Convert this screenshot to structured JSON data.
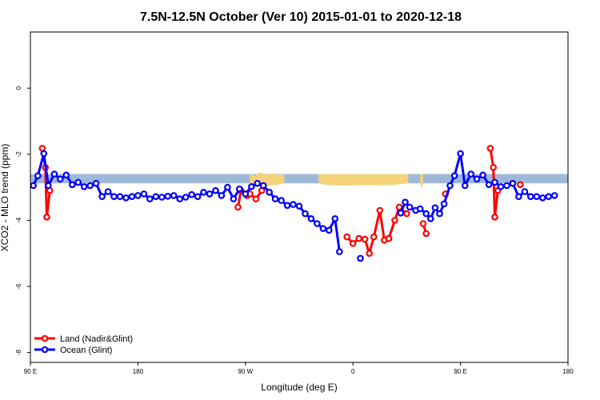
{
  "chart_data": {
    "type": "line",
    "title": "7.5N-12.5N October (Ver 10)   2015-01-01 to 2020-12-18",
    "xlabel": "Longitude (deg E)",
    "ylabel": "XCO2 - MLO trend (ppm)",
    "xlim": [
      90,
      450
    ],
    "ylim": [
      -8.3,
      1.7
    ],
    "x_ticks": [
      {
        "value": 90,
        "label": "90 E"
      },
      {
        "value": 162,
        "label": "180"
      },
      {
        "value": 234,
        "label": "90 W"
      },
      {
        "value": 306,
        "label": "0"
      },
      {
        "value": 378,
        "label": "90 E"
      },
      {
        "value": 450,
        "label": "180"
      }
    ],
    "y_ticks": [
      {
        "value": 0,
        "label": "0"
      },
      {
        "value": -2,
        "label": "-2"
      },
      {
        "value": -4,
        "label": "-4"
      },
      {
        "value": -6,
        "label": "-6"
      },
      {
        "value": -8,
        "label": "-8"
      }
    ],
    "band": {
      "y_low": -2.88,
      "y_high": -2.6,
      "color": "#a0b8d8",
      "land_color": "#f5d37a",
      "land_segments": [
        {
          "x": [
            237,
            240,
            244,
            248,
            252,
            256,
            260
          ],
          "top": [
            -2.6,
            -2.65,
            -2.55,
            -2.62,
            -2.57,
            -2.63,
            -2.6
          ],
          "bottom": [
            -2.88,
            -2.95,
            -3.0,
            -2.97,
            -2.94,
            -2.92,
            -2.88
          ]
        },
        {
          "x": [
            283,
            288,
            300,
            315,
            330,
            343
          ],
          "top": [
            -2.6,
            -2.6,
            -2.6,
            -2.6,
            -2.6,
            -2.6
          ],
          "bottom": [
            -2.88,
            -2.93,
            -2.95,
            -2.93,
            -2.94,
            -2.88
          ]
        },
        {
          "x": [
            351,
            352,
            353
          ],
          "top": [
            -2.6,
            -2.6,
            -2.6
          ],
          "bottom": [
            -2.88,
            -3.05,
            -2.88
          ]
        }
      ]
    },
    "series": [
      {
        "name": "Land (Nadir&Glint)",
        "color": "#ff0000",
        "segments": [
          [
            [
              98,
              -1.82
            ],
            [
              100,
              -2.4
            ],
            [
              101,
              -3.9
            ],
            [
              103,
              -3.1
            ]
          ],
          [
            [
              118,
              -2.92
            ]
          ],
          [
            [
              229,
              -3.6
            ],
            [
              231,
              -3.1
            ],
            [
              235,
              -3.25
            ],
            [
              237,
              -3.2
            ],
            [
              241,
              -3.35
            ],
            [
              245,
              -3.1
            ]
          ],
          [
            [
              302,
              -4.5
            ],
            [
              306,
              -4.7
            ],
            [
              310,
              -4.55
            ],
            [
              314,
              -4.57
            ],
            [
              317,
              -5.0
            ],
            [
              320,
              -4.5
            ],
            [
              324,
              -3.7
            ],
            [
              327,
              -4.6
            ],
            [
              330,
              -4.55
            ],
            [
              334,
              -4.0
            ],
            [
              337,
              -3.6
            ],
            [
              342,
              -3.8
            ]
          ],
          [
            [
              353,
              -4.1
            ],
            [
              355,
              -4.4
            ]
          ],
          [
            [
              368,
              -3.2
            ]
          ],
          [
            [
              398,
              -1.82
            ],
            [
              400,
              -2.4
            ],
            [
              401,
              -3.9
            ],
            [
              403,
              -3.1
            ]
          ],
          [
            [
              418,
              -2.92
            ]
          ]
        ]
      },
      {
        "name": "Ocean (Glint)",
        "color": "#0000ff",
        "segments": [
          [
            [
              92,
              -2.95
            ],
            [
              95,
              -2.65
            ],
            [
              99,
              -1.98
            ],
            [
              102,
              -2.95
            ],
            [
              106,
              -2.6
            ],
            [
              110,
              -2.75
            ],
            [
              114,
              -2.63
            ],
            [
              118,
              -2.92
            ],
            [
              122,
              -2.85
            ],
            [
              126,
              -2.98
            ],
            [
              130,
              -2.95
            ],
            [
              134,
              -2.88
            ],
            [
              138,
              -3.28
            ],
            [
              142,
              -3.13
            ],
            [
              146,
              -3.28
            ],
            [
              150,
              -3.28
            ],
            [
              154,
              -3.32
            ],
            [
              158,
              -3.28
            ],
            [
              162,
              -3.25
            ],
            [
              166,
              -3.2
            ],
            [
              170,
              -3.35
            ],
            [
              174,
              -3.28
            ],
            [
              178,
              -3.3
            ],
            [
              182,
              -3.27
            ],
            [
              186,
              -3.25
            ],
            [
              190,
              -3.35
            ],
            [
              194,
              -3.3
            ],
            [
              198,
              -3.22
            ],
            [
              202,
              -3.28
            ],
            [
              206,
              -3.15
            ],
            [
              210,
              -3.2
            ],
            [
              214,
              -3.1
            ],
            [
              218,
              -3.25
            ],
            [
              222,
              -3.0
            ],
            [
              226,
              -3.35
            ],
            [
              230,
              -3.05
            ],
            [
              234,
              -3.2
            ],
            [
              238,
              -2.98
            ],
            [
              242,
              -2.88
            ],
            [
              246,
              -2.95
            ],
            [
              250,
              -3.15
            ],
            [
              254,
              -3.35
            ],
            [
              258,
              -3.4
            ],
            [
              262,
              -3.55
            ],
            [
              266,
              -3.52
            ],
            [
              270,
              -3.57
            ],
            [
              274,
              -3.8
            ],
            [
              278,
              -3.95
            ],
            [
              282,
              -4.1
            ],
            [
              286,
              -4.25
            ],
            [
              290,
              -4.3
            ],
            [
              294,
              -3.95
            ],
            [
              297,
              -4.95
            ]
          ],
          [
            [
              311,
              -5.15
            ]
          ],
          [
            [
              338,
              -3.78
            ],
            [
              341,
              -3.45
            ],
            [
              344,
              -3.6
            ],
            [
              348,
              -3.7
            ],
            [
              351,
              -3.65
            ],
            [
              355,
              -3.8
            ],
            [
              358,
              -3.95
            ],
            [
              361,
              -3.62
            ],
            [
              364,
              -3.8
            ],
            [
              367,
              -3.5
            ],
            [
              371,
              -2.95
            ],
            [
              374,
              -2.65
            ],
            [
              378,
              -1.98
            ],
            [
              381,
              -2.95
            ],
            [
              385,
              -2.6
            ],
            [
              389,
              -2.75
            ],
            [
              393,
              -2.63
            ],
            [
              397,
              -2.92
            ],
            [
              401,
              -2.85
            ],
            [
              405,
              -2.98
            ],
            [
              409,
              -2.95
            ],
            [
              413,
              -2.88
            ],
            [
              417,
              -3.28
            ],
            [
              421,
              -3.13
            ],
            [
              425,
              -3.28
            ],
            [
              429,
              -3.28
            ],
            [
              433,
              -3.32
            ],
            [
              437,
              -3.28
            ],
            [
              441,
              -3.25
            ]
          ]
        ]
      }
    ],
    "legend_position": "bottom-left",
    "grid": false
  }
}
